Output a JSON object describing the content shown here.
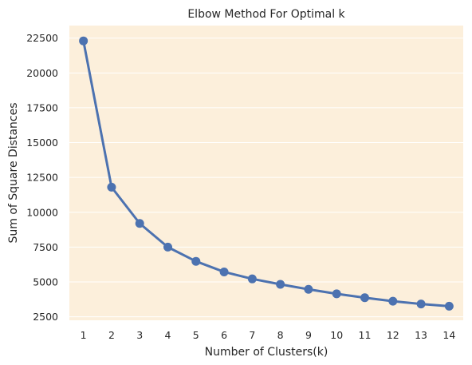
{
  "chart_data": {
    "type": "line",
    "title": "Elbow Method For Optimal k",
    "xlabel": "Number of Clusters(k)",
    "ylabel": "Sum of Square Distances",
    "x": [
      1,
      2,
      3,
      4,
      5,
      6,
      7,
      8,
      9,
      10,
      11,
      12,
      13,
      14
    ],
    "series": [
      {
        "values": [
          22300,
          11800,
          9200,
          7500,
          6480,
          5720,
          5220,
          4830,
          4470,
          4150,
          3870,
          3620,
          3420,
          3260
        ]
      }
    ],
    "yticks": [
      2500,
      5000,
      7500,
      10000,
      12500,
      15000,
      17500,
      20000,
      22500
    ],
    "ylim": [
      2250,
      23400
    ],
    "grid": true,
    "colors": {
      "background": "#fcefdb",
      "line": "#4c72b0",
      "grid": "#ffffff"
    }
  }
}
